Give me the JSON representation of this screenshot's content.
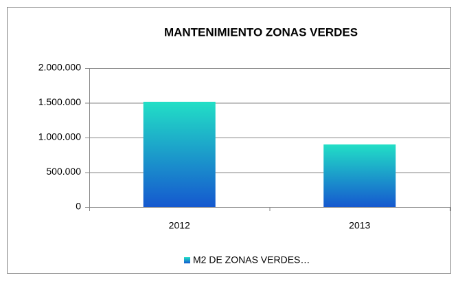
{
  "chart_data": {
    "type": "bar",
    "title": "MANTENIMIENTO ZONAS VERDES",
    "categories": [
      "2012",
      "2013"
    ],
    "series": [
      {
        "name": "M2 DE ZONAS VERDES…",
        "color": [
          "#22dfc6",
          "#1558cf"
        ],
        "values": [
          1515000,
          900000
        ]
      }
    ],
    "ylim": [
      0,
      2000000
    ],
    "yticks": [
      0,
      {
        "value": 500000,
        "label": "500.000"
      },
      {
        "value": 1000000,
        "label": "1.000.000"
      },
      {
        "value": 1500000,
        "label": "1.500.000"
      },
      {
        "value": 2000000,
        "label": "2.000.000"
      }
    ],
    "grid": true,
    "legend": "bottom"
  }
}
